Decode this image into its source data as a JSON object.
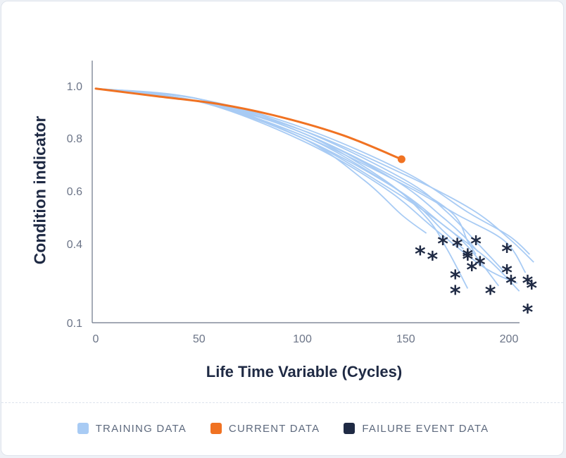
{
  "chart_data": {
    "type": "line",
    "xlabel": "Life Time Variable (Cycles)",
    "ylabel": "Condition indicator",
    "xlim": [
      0,
      206
    ],
    "ylim": [
      0.1,
      1.1
    ],
    "x_ticks": [
      "0",
      "50",
      "100",
      "150",
      "200"
    ],
    "y_ticks": [
      "0.1",
      "0.4",
      "0.6",
      "0.8",
      "1.0"
    ],
    "y_tick_values": [
      0.1,
      0.4,
      0.6,
      0.8,
      1.0
    ],
    "colors": {
      "training": "#a8cbf4",
      "current": "#f07222",
      "failure": "#1f2a44"
    },
    "series": [
      {
        "name": "TRAINING DATA",
        "group": "training",
        "points": [
          [
            0,
            0.99
          ],
          [
            50,
            0.94
          ],
          [
            100,
            0.79
          ],
          [
            140,
            0.61
          ],
          [
            165,
            0.45
          ],
          [
            188,
            0.31
          ],
          [
            204,
            0.25
          ]
        ]
      },
      {
        "name": "TRAINING DATA",
        "group": "training",
        "points": [
          [
            0,
            0.99
          ],
          [
            50,
            0.94
          ],
          [
            100,
            0.8
          ],
          [
            145,
            0.61
          ],
          [
            170,
            0.46
          ],
          [
            190,
            0.34
          ],
          [
            205,
            0.22
          ]
        ]
      },
      {
        "name": "TRAINING DATA",
        "group": "training",
        "points": [
          [
            0,
            0.99
          ],
          [
            50,
            0.95
          ],
          [
            100,
            0.8
          ],
          [
            140,
            0.62
          ],
          [
            165,
            0.49
          ],
          [
            180,
            0.39
          ],
          [
            195,
            0.24
          ]
        ]
      },
      {
        "name": "TRAINING DATA",
        "group": "training",
        "points": [
          [
            0,
            0.99
          ],
          [
            50,
            0.94
          ],
          [
            100,
            0.81
          ],
          [
            150,
            0.62
          ],
          [
            175,
            0.51
          ],
          [
            198,
            0.41
          ],
          [
            208,
            0.29
          ]
        ]
      },
      {
        "name": "TRAINING DATA",
        "group": "training",
        "points": [
          [
            0,
            0.99
          ],
          [
            50,
            0.94
          ],
          [
            100,
            0.83
          ],
          [
            150,
            0.66
          ],
          [
            182,
            0.53
          ],
          [
            200,
            0.42
          ],
          [
            212,
            0.33
          ]
        ]
      },
      {
        "name": "TRAINING DATA",
        "group": "training",
        "points": [
          [
            0,
            0.99
          ],
          [
            50,
            0.95
          ],
          [
            100,
            0.82
          ],
          [
            145,
            0.64
          ],
          [
            168,
            0.5
          ],
          [
            178,
            0.43
          ],
          [
            185,
            0.37
          ]
        ]
      },
      {
        "name": "TRAINING DATA",
        "group": "training",
        "points": [
          [
            0,
            0.99
          ],
          [
            50,
            0.94
          ],
          [
            100,
            0.82
          ],
          [
            140,
            0.64
          ],
          [
            160,
            0.5
          ],
          [
            170,
            0.38
          ],
          [
            180,
            0.23
          ]
        ]
      },
      {
        "name": "TRAINING DATA",
        "group": "training",
        "points": [
          [
            0,
            0.99
          ],
          [
            50,
            0.95
          ],
          [
            100,
            0.83
          ],
          [
            150,
            0.64
          ],
          [
            170,
            0.52
          ],
          [
            185,
            0.4
          ],
          [
            197,
            0.3
          ]
        ]
      },
      {
        "name": "TRAINING DATA",
        "group": "training",
        "points": [
          [
            0,
            0.99
          ],
          [
            50,
            0.94
          ],
          [
            100,
            0.8
          ],
          [
            130,
            0.64
          ],
          [
            148,
            0.51
          ],
          [
            160,
            0.44
          ]
        ]
      },
      {
        "name": "TRAINING DATA",
        "group": "training",
        "points": [
          [
            0,
            0.99
          ],
          [
            50,
            0.95
          ],
          [
            100,
            0.84
          ],
          [
            150,
            0.67
          ],
          [
            180,
            0.52
          ],
          [
            200,
            0.43
          ],
          [
            210,
            0.36
          ]
        ]
      },
      {
        "name": "TRAINING DATA",
        "group": "training",
        "points": [
          [
            0,
            0.99
          ],
          [
            50,
            0.94
          ],
          [
            100,
            0.81
          ],
          [
            135,
            0.66
          ],
          [
            155,
            0.55
          ],
          [
            168,
            0.45
          ],
          [
            178,
            0.38
          ]
        ]
      },
      {
        "name": "TRAINING DATA",
        "group": "training",
        "points": [
          [
            0,
            0.99
          ],
          [
            50,
            0.95
          ],
          [
            100,
            0.82
          ],
          [
            145,
            0.65
          ],
          [
            172,
            0.52
          ],
          [
            180,
            0.41
          ],
          [
            184,
            0.36
          ]
        ]
      },
      {
        "name": "CURRENT DATA",
        "group": "current",
        "points": [
          [
            0,
            0.99
          ],
          [
            30,
            0.96
          ],
          [
            60,
            0.93
          ],
          [
            90,
            0.88
          ],
          [
            120,
            0.81
          ],
          [
            148,
            0.72
          ]
        ]
      }
    ],
    "failure_events": [
      [
        157,
        0.37
      ],
      [
        163,
        0.35
      ],
      [
        168,
        0.41
      ],
      [
        174,
        0.28
      ],
      [
        174,
        0.22
      ],
      [
        175,
        0.4
      ],
      [
        180,
        0.35
      ],
      [
        180,
        0.36
      ],
      [
        182,
        0.31
      ],
      [
        184,
        0.41
      ],
      [
        186,
        0.33
      ],
      [
        191,
        0.22
      ],
      [
        199,
        0.38
      ],
      [
        199,
        0.3
      ],
      [
        201,
        0.26
      ],
      [
        209,
        0.26
      ],
      [
        211,
        0.24
      ],
      [
        209,
        0.15
      ]
    ],
    "legend": [
      {
        "label": "TRAINING DATA",
        "color": "#a8cbf4"
      },
      {
        "label": "CURRENT DATA",
        "color": "#f07222"
      },
      {
        "label": "FAILURE EVENT DATA",
        "color": "#1f2a44"
      }
    ],
    "legend_position": "bottom",
    "grid": false
  }
}
